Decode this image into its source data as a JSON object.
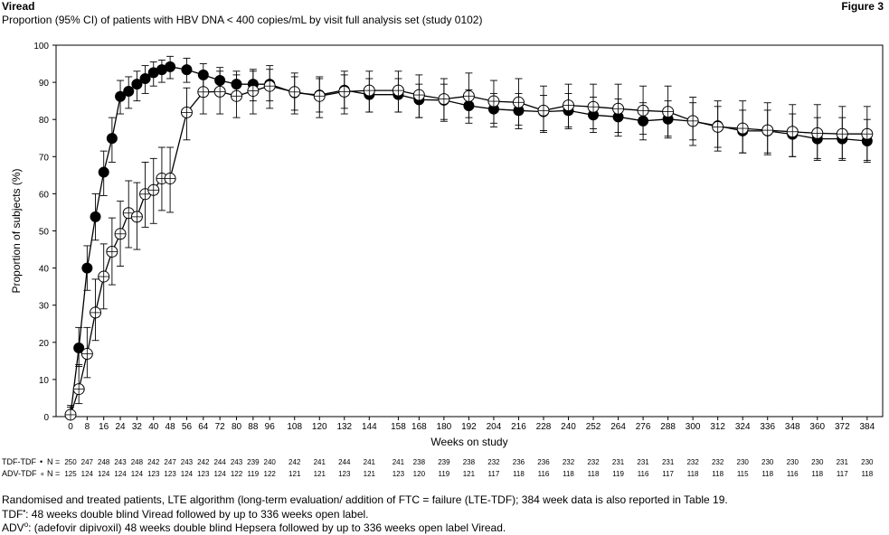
{
  "header": {
    "drug": "Viread",
    "figure": "Figure 3"
  },
  "chart_data": {
    "type": "line",
    "title": "Proportion (95% CI) of patients with HBV DNA < 400 copies/mL by visit full analysis set (study 0102)",
    "xlabel": "Weeks on study",
    "ylabel": "Proportion of subjects (%)",
    "ylim": [
      0,
      100
    ],
    "xlim": [
      0,
      388
    ],
    "yticks": [
      0,
      10,
      20,
      30,
      40,
      50,
      60,
      70,
      80,
      90,
      100
    ],
    "xticks": [
      0,
      8,
      16,
      24,
      32,
      40,
      48,
      56,
      64,
      72,
      80,
      88,
      96,
      108,
      120,
      132,
      144,
      158,
      168,
      180,
      192,
      204,
      216,
      228,
      240,
      252,
      264,
      276,
      288,
      300,
      312,
      324,
      336,
      348,
      360,
      372,
      384
    ],
    "grid": false,
    "series": [
      {
        "name": "TDF-TDF",
        "marker": "filled-circle",
        "x": [
          0,
          4,
          8,
          12,
          16,
          20,
          24,
          28,
          32,
          36,
          40,
          44,
          48,
          56,
          64,
          72,
          80,
          88,
          96,
          108,
          120,
          132,
          144,
          158,
          168,
          180,
          192,
          204,
          216,
          228,
          240,
          252,
          264,
          276,
          288,
          300,
          312,
          324,
          336,
          348,
          360,
          372,
          384
        ],
        "y": [
          0.5,
          18.5,
          40,
          53.8,
          65.8,
          74.9,
          86.2,
          87.6,
          89.5,
          91,
          92.6,
          93.4,
          94.2,
          93.4,
          92,
          90.5,
          89.5,
          89.5,
          89.5,
          87.2,
          86.6,
          87.9,
          86.7,
          86.7,
          85.3,
          85.2,
          83.7,
          82.8,
          82.4,
          82.1,
          82.4,
          81.2,
          80.7,
          79.6,
          80.1,
          79.5,
          78.3,
          76.9,
          76.9,
          76,
          74.8,
          74.8,
          74.2
        ],
        "ci_low": [
          0,
          13.5,
          34,
          47.5,
          59.5,
          68.5,
          81.5,
          83,
          85,
          87,
          89,
          90,
          91,
          90,
          88,
          86.5,
          85.5,
          85,
          85,
          82.5,
          82,
          83,
          82,
          82,
          80.5,
          80,
          79,
          78,
          77.5,
          77,
          77.5,
          76.5,
          75.5,
          74.5,
          75,
          74.5,
          72.5,
          71,
          71,
          70,
          69,
          69,
          68.5
        ],
        "ci_high": [
          2.5,
          24,
          46,
          60,
          71.5,
          80.5,
          90.5,
          91.5,
          93,
          94.5,
          95.5,
          96,
          97,
          96.5,
          95,
          94,
          93,
          93.5,
          93.5,
          91.5,
          91,
          92,
          91,
          91,
          89.5,
          89.5,
          88,
          87,
          87,
          86.5,
          87,
          86,
          85.5,
          84.5,
          85,
          84.5,
          83.5,
          82.5,
          82.5,
          81.5,
          80.5,
          80.5,
          80
        ]
      },
      {
        "name": "ADV-TDF",
        "marker": "open-circle",
        "x": [
          0,
          4,
          8,
          12,
          16,
          20,
          24,
          28,
          32,
          36,
          40,
          44,
          48,
          56,
          64,
          72,
          80,
          88,
          96,
          108,
          120,
          132,
          144,
          158,
          168,
          180,
          192,
          204,
          216,
          228,
          240,
          252,
          264,
          276,
          288,
          300,
          312,
          324,
          336,
          348,
          360,
          372,
          384
        ],
        "y": [
          0.5,
          7.4,
          16.9,
          28,
          37.7,
          44.4,
          49.2,
          54.8,
          53.8,
          59.9,
          61,
          64.1,
          64.1,
          81.9,
          87.4,
          87.5,
          86.3,
          87.7,
          89,
          87.4,
          86.3,
          87.5,
          87.8,
          87.8,
          86.6,
          85.5,
          86.3,
          84.9,
          84.6,
          82.4,
          83.8,
          83.4,
          82.9,
          82.4,
          82.1,
          79.6,
          78,
          77.6,
          77.1,
          76.7,
          76.3,
          76.1,
          76.1
        ],
        "ci_low": [
          0,
          3.5,
          10.5,
          20.5,
          29,
          35.5,
          40.5,
          45.5,
          45,
          51,
          52,
          55.5,
          55,
          74.5,
          81.5,
          81.5,
          80.5,
          81.5,
          83,
          81.5,
          80.5,
          81.5,
          82,
          82,
          80.5,
          79.5,
          80.5,
          79,
          78.5,
          76.5,
          78,
          77.5,
          76.5,
          76,
          75.5,
          73,
          71.5,
          71,
          70.5,
          70,
          69.5,
          69.5,
          69
        ],
        "ci_high": [
          3,
          14,
          24,
          37,
          46.5,
          53.5,
          58,
          63.5,
          63,
          68.5,
          69.5,
          72.5,
          72.5,
          88.5,
          93,
          93,
          92,
          93,
          94.5,
          92.5,
          91.5,
          93,
          93,
          93,
          92,
          91,
          92.5,
          90.5,
          91,
          89,
          89.5,
          89.5,
          89.5,
          89,
          89,
          86,
          85,
          85,
          84.5,
          84,
          84,
          83.5,
          83.5
        ]
      }
    ],
    "n_rows": {
      "label_tdf": "TDF-TDF",
      "label_adv": "ADV-TDF",
      "marker_tdf": "•",
      "marker_adv": "∘",
      "prefix": "N =",
      "columns": [
        {
          "x": 0,
          "tdf": "250",
          "adv": "125"
        },
        {
          "x": 8,
          "tdf": "247",
          "adv": "124"
        },
        {
          "x": 16,
          "tdf": "248",
          "adv": "124"
        },
        {
          "x": 24,
          "tdf": "243",
          "adv": "124"
        },
        {
          "x": 32,
          "tdf": "248",
          "adv": "124"
        },
        {
          "x": 40,
          "tdf": "242",
          "adv": "123"
        },
        {
          "x": 48,
          "tdf": "247",
          "adv": "123"
        },
        {
          "x": 56,
          "tdf": "243",
          "adv": "124"
        },
        {
          "x": 64,
          "tdf": "242",
          "adv": "123"
        },
        {
          "x": 72,
          "tdf": "244",
          "adv": "124"
        },
        {
          "x": 80,
          "tdf": "243",
          "adv": "122"
        },
        {
          "x": 88,
          "tdf": "239",
          "adv": "119"
        },
        {
          "x": 96,
          "tdf": "240",
          "adv": "122"
        },
        {
          "x": 108,
          "tdf": "242",
          "adv": "121"
        },
        {
          "x": 120,
          "tdf": "241",
          "adv": "121"
        },
        {
          "x": 132,
          "tdf": "244",
          "adv": "123"
        },
        {
          "x": 144,
          "tdf": "241",
          "adv": "121"
        },
        {
          "x": 158,
          "tdf": "241",
          "adv": "123"
        },
        {
          "x": 168,
          "tdf": "238",
          "adv": "120"
        },
        {
          "x": 180,
          "tdf": "239",
          "adv": "119"
        },
        {
          "x": 192,
          "tdf": "238",
          "adv": "121"
        },
        {
          "x": 204,
          "tdf": "232",
          "adv": "117"
        },
        {
          "x": 216,
          "tdf": "236",
          "adv": "118"
        },
        {
          "x": 228,
          "tdf": "236",
          "adv": "116"
        },
        {
          "x": 240,
          "tdf": "232",
          "adv": "118"
        },
        {
          "x": 252,
          "tdf": "232",
          "adv": "118"
        },
        {
          "x": 264,
          "tdf": "231",
          "adv": "119"
        },
        {
          "x": 276,
          "tdf": "231",
          "adv": "116"
        },
        {
          "x": 288,
          "tdf": "231",
          "adv": "117"
        },
        {
          "x": 300,
          "tdf": "232",
          "adv": "118"
        },
        {
          "x": 312,
          "tdf": "232",
          "adv": "118"
        },
        {
          "x": 324,
          "tdf": "230",
          "adv": "115"
        },
        {
          "x": 336,
          "tdf": "230",
          "adv": "118"
        },
        {
          "x": 348,
          "tdf": "230",
          "adv": "116"
        },
        {
          "x": 360,
          "tdf": "230",
          "adv": "118"
        },
        {
          "x": 372,
          "tdf": "231",
          "adv": "117"
        },
        {
          "x": 384,
          "tdf": "230",
          "adv": "118"
        }
      ]
    }
  },
  "footnotes": {
    "line1": "Randomised and treated patients, LTE algorithm (long-term evaluation/ addition of FTC = failure (LTE-TDF); 384 week data is also reported in Table 19.",
    "line2_label": "TDF",
    "line2_sup": "•",
    "line2_text": ": 48 weeks double blind Viread followed by up to 336 weeks open label.",
    "line3_label": "ADV",
    "line3_sup": "o",
    "line3_text": ": (adefovir dipivoxil) 48 weeks double blind Hepsera followed by up to 336 weeks open label Viread."
  }
}
